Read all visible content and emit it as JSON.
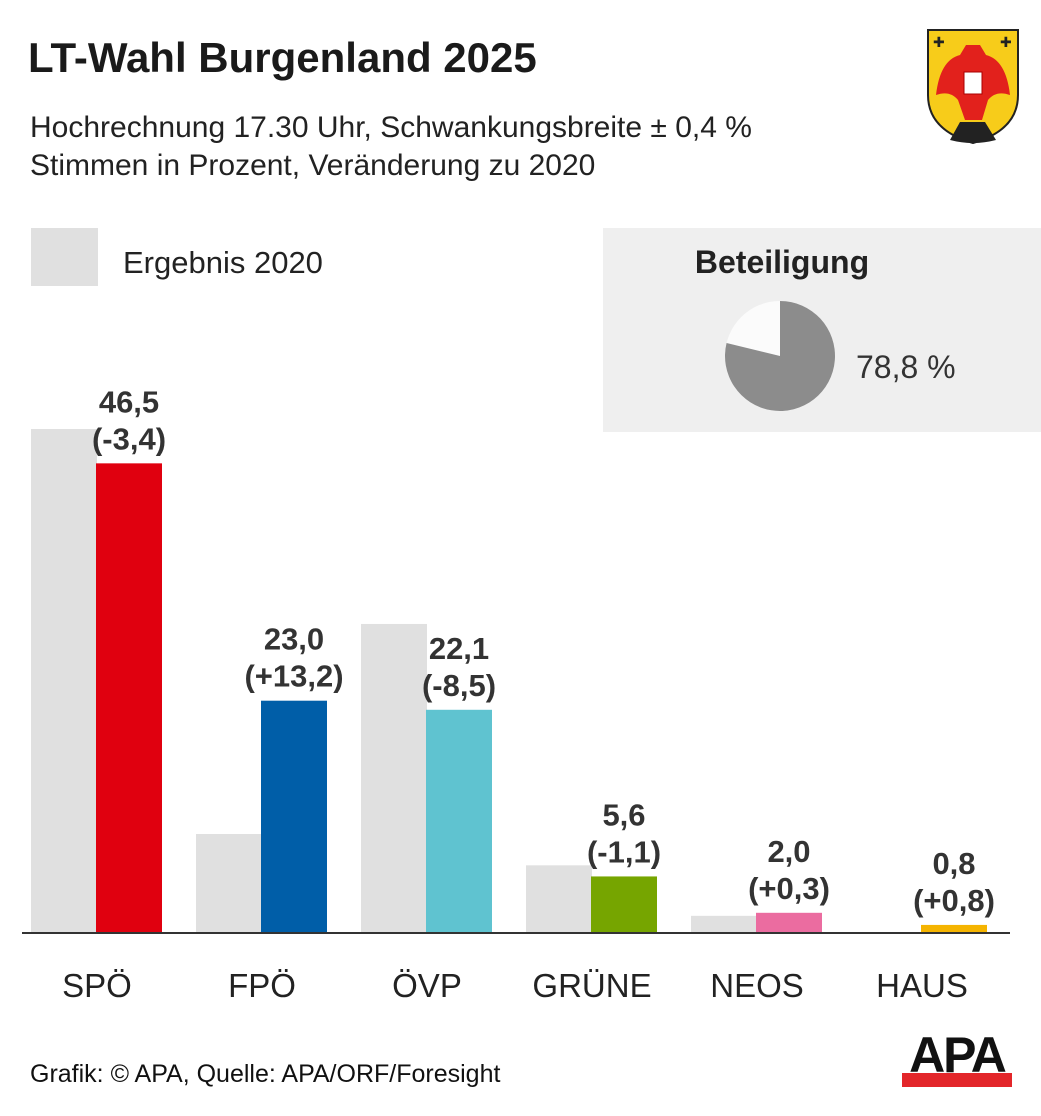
{
  "title": "LT-Wahl Burgenland 2025",
  "subtitle_1": "Hochrechnung 17.30 Uhr, Schwankungsbreite ± 0,4 %",
  "subtitle_2": "Stimmen in Prozent, Veränderung zu 2020",
  "legend_2020": "Ergebnis 2020",
  "turnout": {
    "label": "Beteiligung",
    "value": 78.8,
    "value_text": "78,8 %",
    "color": "#8c8c8c"
  },
  "source": "Grafik: © APA, Quelle: APA/ORF/Foresight",
  "logo_text": "APA",
  "chart_data": {
    "type": "bar",
    "title": "LT-Wahl Burgenland 2025",
    "categories": [
      "SPÖ",
      "FPÖ",
      "ÖVP",
      "GRÜNE",
      "NEOS",
      "HAUS"
    ],
    "series": [
      {
        "name": "Ergebnis 2020",
        "values": [
          49.9,
          9.8,
          30.6,
          6.7,
          1.7,
          0
        ],
        "color": "#e0e0e0"
      },
      {
        "name": "2025",
        "values": [
          46.5,
          23.0,
          22.1,
          5.6,
          2.0,
          0.8
        ],
        "colors": [
          "#e0000f",
          "#005ea8",
          "#5fc3d0",
          "#76a500",
          "#eb6ca0",
          "#f5b400"
        ]
      }
    ],
    "value_labels": [
      "46,5",
      "23,0",
      "22,1",
      "5,6",
      "2,0",
      "0,8"
    ],
    "change_labels": [
      "(-3,4)",
      "(+13,2)",
      "(-8,5)",
      "(-1,1)",
      "(+0,3)",
      "(+0,8)"
    ],
    "ylim": [
      0,
      50
    ],
    "grid": false
  }
}
